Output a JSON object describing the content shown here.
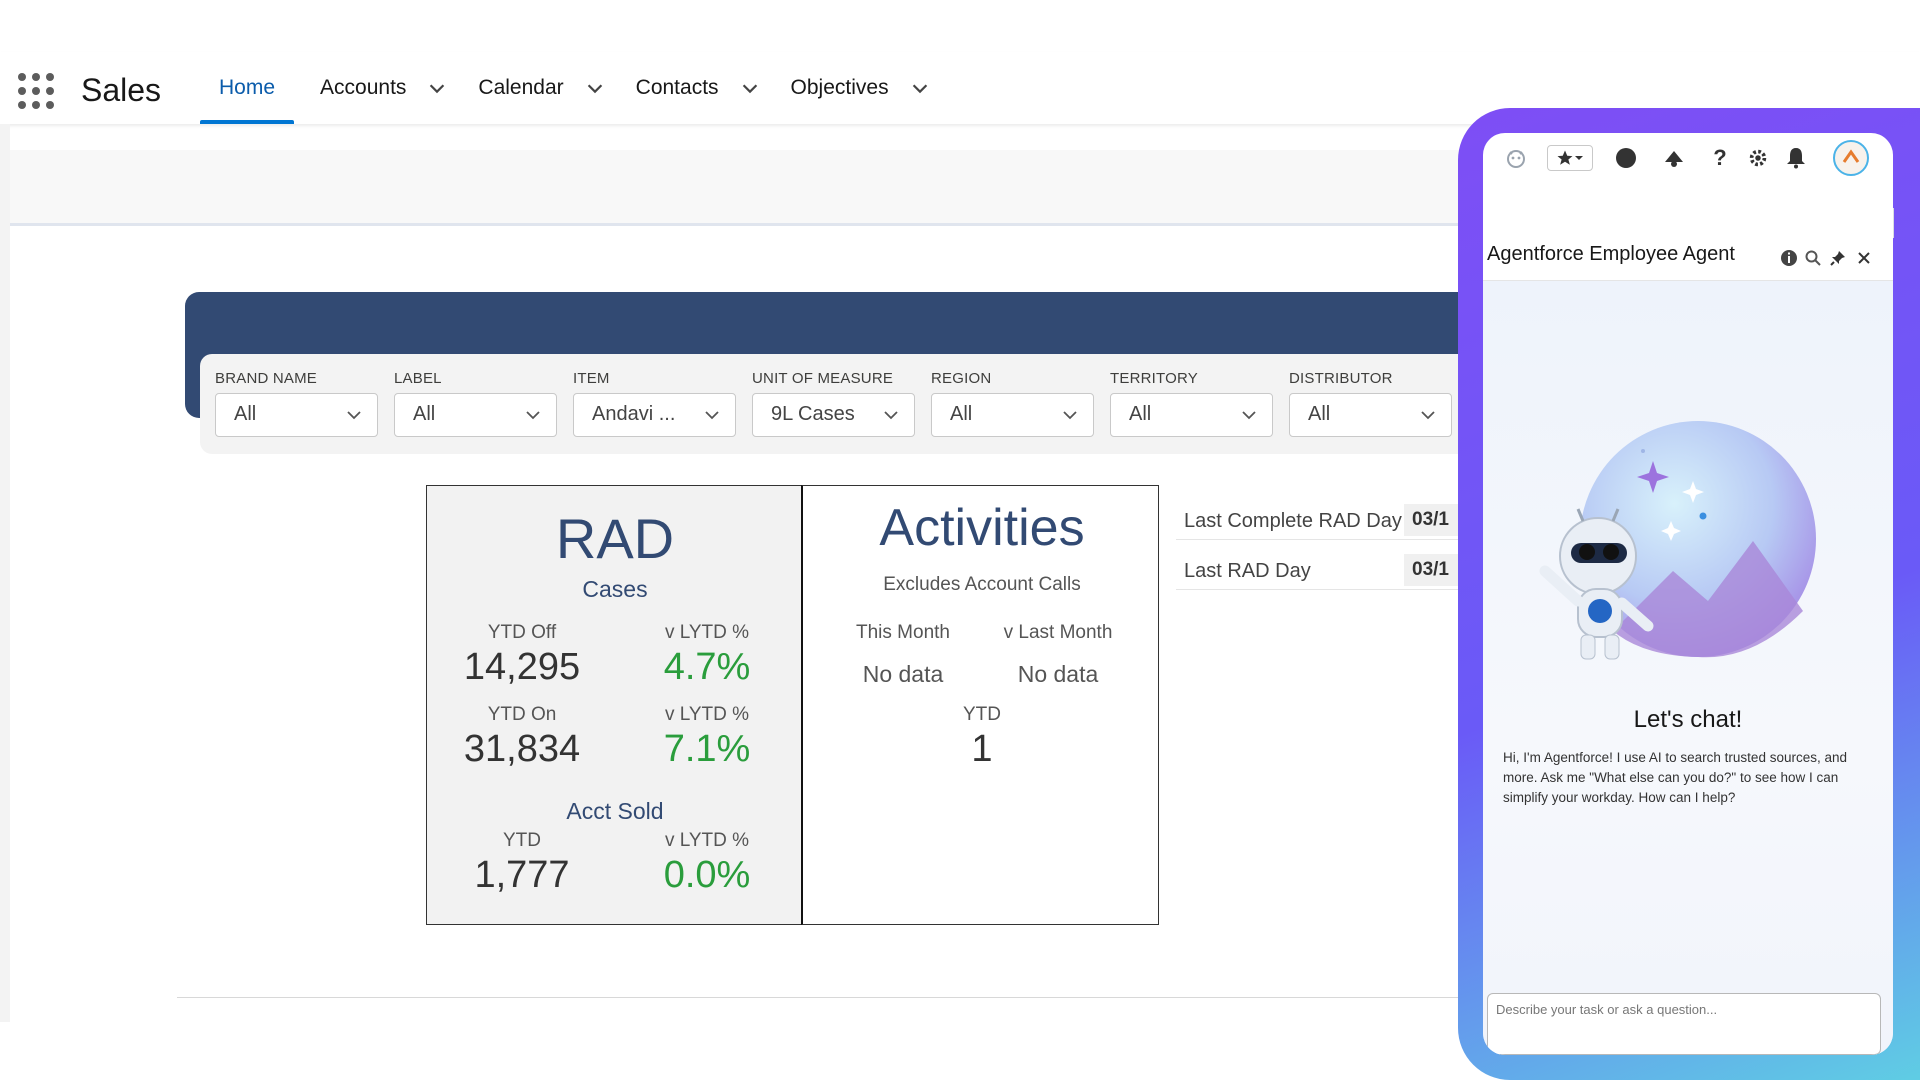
{
  "app": {
    "name": "Sales"
  },
  "nav": {
    "tabs": [
      {
        "label": "Home"
      },
      {
        "label": "Accounts"
      },
      {
        "label": "Calendar"
      },
      {
        "label": "Contacts"
      },
      {
        "label": "Objectives"
      }
    ]
  },
  "filters": [
    {
      "label": "BRAND NAME",
      "value": "All"
    },
    {
      "label": "LABEL",
      "value": "All"
    },
    {
      "label": "ITEM",
      "value": "Andavi ..."
    },
    {
      "label": "UNIT OF MEASURE",
      "value": "9L Cases"
    },
    {
      "label": "REGION",
      "value": "All"
    },
    {
      "label": "TERRITORY",
      "value": "All"
    },
    {
      "label": "DISTRIBUTOR",
      "value": "All"
    }
  ],
  "rad": {
    "title": "RAD",
    "subtitle": "Cases",
    "ytd_off_label": "YTD Off",
    "ytd_off_value": "14,295",
    "ytd_off_pct_label": "v LYTD %",
    "ytd_off_pct": "4.7%",
    "ytd_on_label": "YTD On",
    "ytd_on_value": "31,834",
    "ytd_on_pct_label": "v LYTD %",
    "ytd_on_pct": "7.1%",
    "acct_sold_label": "Acct Sold",
    "acct_ytd_label": "YTD",
    "acct_ytd_value": "1,777",
    "acct_pct_label": "v LYTD %",
    "acct_pct": "0.0%"
  },
  "activities": {
    "title": "Activities",
    "subtitle": "Excludes Account Calls",
    "this_month_label": "This Month",
    "this_month_value": "No data",
    "last_month_label": "v Last Month",
    "last_month_value": "No data",
    "ytd_label": "YTD",
    "ytd_value": "1"
  },
  "rad_dates": {
    "last_complete_label": "Last Complete RAD Day",
    "last_complete_value": "03/1",
    "last_label": "Last RAD Day",
    "last_value": "03/1"
  },
  "agent": {
    "title": "Agentforce Employee Agent",
    "chat_title": "Let's chat!",
    "chat_text": "Hi, I'm Agentforce! I use AI to search trusted sources, and more. Ask me \"What else can you do?\" to see how I can simplify your workday. How can I help?",
    "input_placeholder": "Describe your task or ask a question..."
  },
  "colors": {
    "brand_dark": "#324a73",
    "positive": "#2a9d3c",
    "active_tab": "#0176d3"
  }
}
